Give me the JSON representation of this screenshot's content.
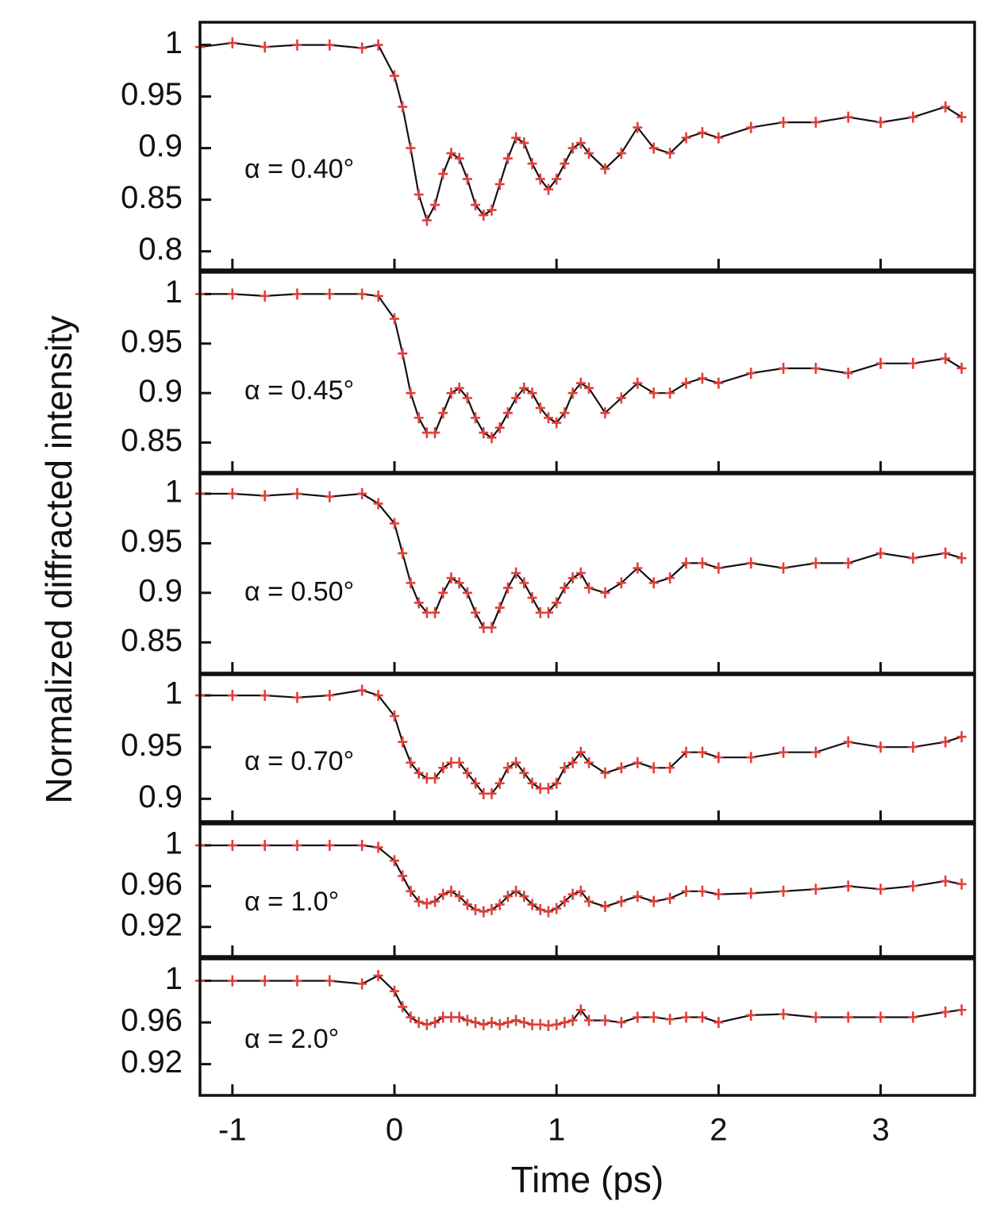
{
  "chart_data": [
    {
      "type": "line",
      "annotation": "α = 0.40°",
      "ylabel": "Normalized diffracted intensity",
      "x": [
        -1.2,
        -1.0,
        -0.8,
        -0.6,
        -0.4,
        -0.2,
        -0.1,
        0,
        0.05,
        0.1,
        0.15,
        0.2,
        0.25,
        0.3,
        0.35,
        0.4,
        0.45,
        0.5,
        0.55,
        0.6,
        0.65,
        0.7,
        0.75,
        0.8,
        0.85,
        0.9,
        0.95,
        1.0,
        1.05,
        1.1,
        1.15,
        1.2,
        1.3,
        1.4,
        1.5,
        1.6,
        1.7,
        1.8,
        1.9,
        2.0,
        2.2,
        2.4,
        2.6,
        2.8,
        3.0,
        3.2,
        3.4,
        3.5
      ],
      "values": [
        0.998,
        1.002,
        0.998,
        1.0,
        1.0,
        0.997,
        1.0,
        0.97,
        0.94,
        0.9,
        0.855,
        0.83,
        0.845,
        0.875,
        0.895,
        0.89,
        0.87,
        0.845,
        0.835,
        0.84,
        0.865,
        0.89,
        0.91,
        0.905,
        0.885,
        0.87,
        0.86,
        0.87,
        0.885,
        0.9,
        0.905,
        0.895,
        0.88,
        0.895,
        0.92,
        0.9,
        0.895,
        0.91,
        0.915,
        0.91,
        0.92,
        0.925,
        0.925,
        0.93,
        0.925,
        0.93,
        0.94,
        0.93
      ],
      "color": "#111111",
      "marker_color": "#e0403a",
      "xlim": [
        -1.2,
        3.58
      ],
      "xticks": [
        -1,
        0,
        1,
        2,
        3
      ],
      "ylim": [
        0.782,
        1.022
      ],
      "yticks": [
        0.8,
        0.85,
        0.9,
        0.95,
        1
      ]
    },
    {
      "type": "line",
      "annotation": "α = 0.45°",
      "x": [
        -1.2,
        -1.0,
        -0.8,
        -0.6,
        -0.4,
        -0.2,
        -0.1,
        0,
        0.05,
        0.1,
        0.15,
        0.2,
        0.25,
        0.3,
        0.35,
        0.4,
        0.45,
        0.5,
        0.55,
        0.6,
        0.65,
        0.7,
        0.75,
        0.8,
        0.85,
        0.9,
        0.95,
        1.0,
        1.05,
        1.1,
        1.15,
        1.2,
        1.3,
        1.4,
        1.5,
        1.6,
        1.7,
        1.8,
        1.9,
        2.0,
        2.2,
        2.4,
        2.6,
        2.8,
        3.0,
        3.2,
        3.4,
        3.5
      ],
      "values": [
        1.0,
        1.0,
        0.998,
        1.0,
        1.0,
        1.0,
        0.998,
        0.975,
        0.94,
        0.9,
        0.875,
        0.86,
        0.86,
        0.88,
        0.9,
        0.905,
        0.895,
        0.875,
        0.86,
        0.855,
        0.865,
        0.88,
        0.895,
        0.905,
        0.9,
        0.885,
        0.875,
        0.87,
        0.88,
        0.9,
        0.91,
        0.905,
        0.88,
        0.895,
        0.91,
        0.9,
        0.9,
        0.91,
        0.915,
        0.91,
        0.92,
        0.925,
        0.925,
        0.92,
        0.93,
        0.93,
        0.935,
        0.925
      ],
      "color": "#111111",
      "marker_color": "#e0403a",
      "xlim": [
        -1.2,
        3.58
      ],
      "xticks": [
        -1,
        0,
        1,
        2,
        3
      ],
      "ylim": [
        0.82,
        1.022
      ],
      "yticks": [
        0.85,
        0.9,
        0.95,
        1
      ]
    },
    {
      "type": "line",
      "annotation": "α = 0.50°",
      "x": [
        -1.2,
        -1.0,
        -0.8,
        -0.6,
        -0.4,
        -0.2,
        -0.1,
        0,
        0.05,
        0.1,
        0.15,
        0.2,
        0.25,
        0.3,
        0.35,
        0.4,
        0.45,
        0.5,
        0.55,
        0.6,
        0.65,
        0.7,
        0.75,
        0.8,
        0.85,
        0.9,
        0.95,
        1.0,
        1.05,
        1.1,
        1.15,
        1.2,
        1.3,
        1.4,
        1.5,
        1.6,
        1.7,
        1.8,
        1.9,
        2.0,
        2.2,
        2.4,
        2.6,
        2.8,
        3.0,
        3.2,
        3.4,
        3.5
      ],
      "values": [
        1.0,
        1.0,
        0.998,
        1.0,
        0.997,
        1.0,
        0.99,
        0.97,
        0.94,
        0.91,
        0.89,
        0.88,
        0.88,
        0.9,
        0.915,
        0.91,
        0.9,
        0.88,
        0.865,
        0.865,
        0.885,
        0.905,
        0.92,
        0.91,
        0.895,
        0.88,
        0.88,
        0.89,
        0.905,
        0.915,
        0.92,
        0.905,
        0.9,
        0.91,
        0.925,
        0.91,
        0.915,
        0.93,
        0.93,
        0.925,
        0.93,
        0.925,
        0.93,
        0.93,
        0.94,
        0.935,
        0.94,
        0.935
      ],
      "color": "#111111",
      "marker_color": "#e0403a",
      "xlim": [
        -1.2,
        3.58
      ],
      "xticks": [
        -1,
        0,
        1,
        2,
        3
      ],
      "ylim": [
        0.819,
        1.02
      ],
      "yticks": [
        0.85,
        0.9,
        0.95,
        1
      ]
    },
    {
      "type": "line",
      "annotation": "α = 0.70°",
      "x": [
        -1.2,
        -1.0,
        -0.8,
        -0.6,
        -0.4,
        -0.2,
        -0.1,
        0,
        0.05,
        0.1,
        0.15,
        0.2,
        0.25,
        0.3,
        0.35,
        0.4,
        0.45,
        0.5,
        0.55,
        0.6,
        0.65,
        0.7,
        0.75,
        0.8,
        0.85,
        0.9,
        0.95,
        1.0,
        1.05,
        1.1,
        1.15,
        1.2,
        1.3,
        1.4,
        1.5,
        1.6,
        1.7,
        1.8,
        1.9,
        2.0,
        2.2,
        2.4,
        2.6,
        2.8,
        3.0,
        3.2,
        3.4,
        3.5
      ],
      "values": [
        1.0,
        1.0,
        1.0,
        0.998,
        1.0,
        1.005,
        1.0,
        0.98,
        0.955,
        0.935,
        0.925,
        0.92,
        0.92,
        0.93,
        0.935,
        0.935,
        0.925,
        0.915,
        0.905,
        0.905,
        0.915,
        0.93,
        0.935,
        0.925,
        0.915,
        0.91,
        0.91,
        0.915,
        0.93,
        0.935,
        0.945,
        0.935,
        0.925,
        0.93,
        0.935,
        0.93,
        0.93,
        0.945,
        0.945,
        0.94,
        0.94,
        0.945,
        0.945,
        0.955,
        0.95,
        0.95,
        0.955,
        0.96
      ],
      "color": "#111111",
      "marker_color": "#e0403a",
      "xlim": [
        -1.2,
        3.58
      ],
      "xticks": [
        -1,
        0,
        1,
        2,
        3
      ],
      "ylim": [
        0.878,
        1.02
      ],
      "yticks": [
        0.9,
        0.95,
        1
      ]
    },
    {
      "type": "line",
      "annotation": "α = 1.0°",
      "x": [
        -1.2,
        -1.0,
        -0.8,
        -0.6,
        -0.4,
        -0.2,
        -0.1,
        0,
        0.05,
        0.1,
        0.15,
        0.2,
        0.25,
        0.3,
        0.35,
        0.4,
        0.45,
        0.5,
        0.55,
        0.6,
        0.65,
        0.7,
        0.75,
        0.8,
        0.85,
        0.9,
        0.95,
        1.0,
        1.05,
        1.1,
        1.15,
        1.2,
        1.3,
        1.4,
        1.5,
        1.6,
        1.7,
        1.8,
        1.9,
        2.0,
        2.2,
        2.4,
        2.6,
        2.8,
        3.0,
        3.2,
        3.4,
        3.5
      ],
      "values": [
        1.0,
        1.0,
        1.0,
        1.0,
        1.0,
        1.0,
        0.998,
        0.985,
        0.97,
        0.955,
        0.945,
        0.943,
        0.945,
        0.952,
        0.955,
        0.95,
        0.942,
        0.937,
        0.935,
        0.937,
        0.942,
        0.95,
        0.955,
        0.95,
        0.942,
        0.937,
        0.935,
        0.938,
        0.945,
        0.952,
        0.955,
        0.945,
        0.94,
        0.945,
        0.95,
        0.945,
        0.948,
        0.955,
        0.955,
        0.952,
        0.953,
        0.955,
        0.957,
        0.96,
        0.957,
        0.96,
        0.965,
        0.962
      ],
      "color": "#111111",
      "marker_color": "#e0403a",
      "xlim": [
        -1.2,
        3.58
      ],
      "xticks": [
        -1,
        0,
        1,
        2,
        3
      ],
      "ylim": [
        0.891,
        1.021
      ],
      "yticks": [
        0.92,
        0.96,
        1
      ]
    },
    {
      "type": "line",
      "annotation": "α = 2.0°",
      "xlabel": "Time (ps)",
      "x": [
        -1.2,
        -1.0,
        -0.8,
        -0.6,
        -0.4,
        -0.2,
        -0.1,
        0,
        0.05,
        0.1,
        0.15,
        0.2,
        0.25,
        0.3,
        0.35,
        0.4,
        0.45,
        0.5,
        0.55,
        0.6,
        0.65,
        0.7,
        0.75,
        0.8,
        0.85,
        0.9,
        0.95,
        1.0,
        1.05,
        1.1,
        1.15,
        1.2,
        1.3,
        1.4,
        1.5,
        1.6,
        1.7,
        1.8,
        1.9,
        2.0,
        2.2,
        2.4,
        2.6,
        2.8,
        3.0,
        3.2,
        3.4,
        3.5
      ],
      "values": [
        1.0,
        1.0,
        1.0,
        1.0,
        1.0,
        0.997,
        1.005,
        0.99,
        0.975,
        0.965,
        0.96,
        0.958,
        0.96,
        0.965,
        0.965,
        0.965,
        0.962,
        0.96,
        0.958,
        0.96,
        0.958,
        0.96,
        0.962,
        0.96,
        0.958,
        0.958,
        0.957,
        0.958,
        0.96,
        0.962,
        0.972,
        0.962,
        0.962,
        0.96,
        0.965,
        0.965,
        0.963,
        0.965,
        0.965,
        0.96,
        0.967,
        0.968,
        0.965,
        0.965,
        0.965,
        0.965,
        0.97,
        0.972
      ],
      "color": "#111111",
      "marker_color": "#e0403a",
      "xlim": [
        -1.2,
        3.58
      ],
      "xticks": [
        -1,
        0,
        1,
        2,
        3
      ],
      "ylim": [
        0.89,
        1.021
      ],
      "yticks": [
        0.92,
        0.96,
        1
      ]
    }
  ]
}
